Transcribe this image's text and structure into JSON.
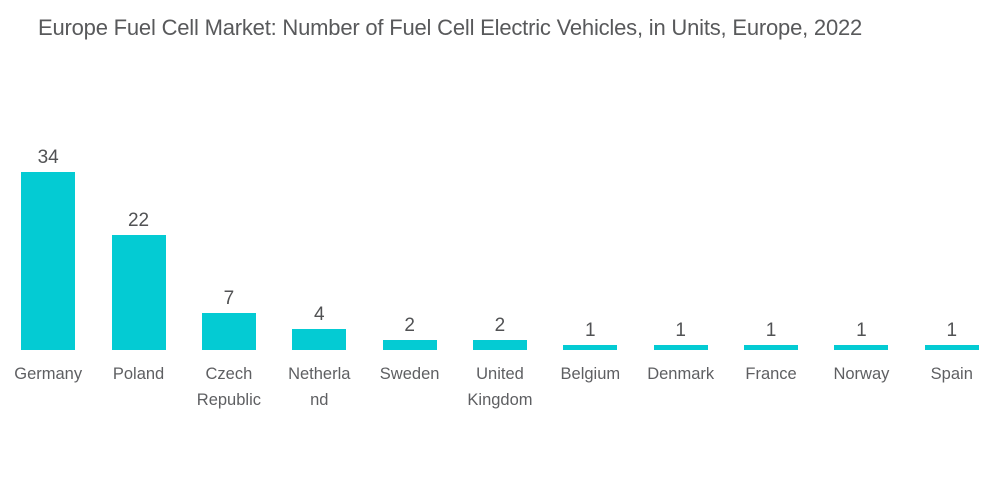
{
  "title": "Europe Fuel Cell Market: Number of Fuel Cell Electric Vehicles, in Units, Europe, 2022",
  "colors": {
    "bar": "#04CBD3",
    "title_text": "#58595B",
    "value_label_text": "#515254",
    "category_label_text": "#5E5F62",
    "background": "#FFFFFF"
  },
  "chart_data": {
    "type": "bar",
    "title": "Europe Fuel Cell Market: Number of Fuel Cell Electric Vehicles, in Units, Europe, 2022",
    "categories": [
      "Germany",
      "Poland",
      "Czech Republic",
      "Netherland",
      "Sweden",
      "United Kingdom",
      "Belgium",
      "Denmark",
      "France",
      "Norway",
      "Spain"
    ],
    "values": [
      34,
      22,
      7,
      4,
      2,
      2,
      1,
      1,
      1,
      1,
      1
    ],
    "category_lines": [
      [
        "Germany"
      ],
      [
        "Poland"
      ],
      [
        "Czech",
        "Republic"
      ],
      [
        "Netherla",
        "nd"
      ],
      [
        "Sweden"
      ],
      [
        "United",
        "Kingdom"
      ],
      [
        "Belgium"
      ],
      [
        "Denmark"
      ],
      [
        "France"
      ],
      [
        "Norway"
      ],
      [
        "Spain"
      ]
    ],
    "xlabel": "",
    "ylabel": "",
    "ylim": [
      0,
      36
    ],
    "grid": false,
    "legend": false,
    "axes_visible": false,
    "data_labels": true,
    "bar_color": "#04CBD3"
  }
}
